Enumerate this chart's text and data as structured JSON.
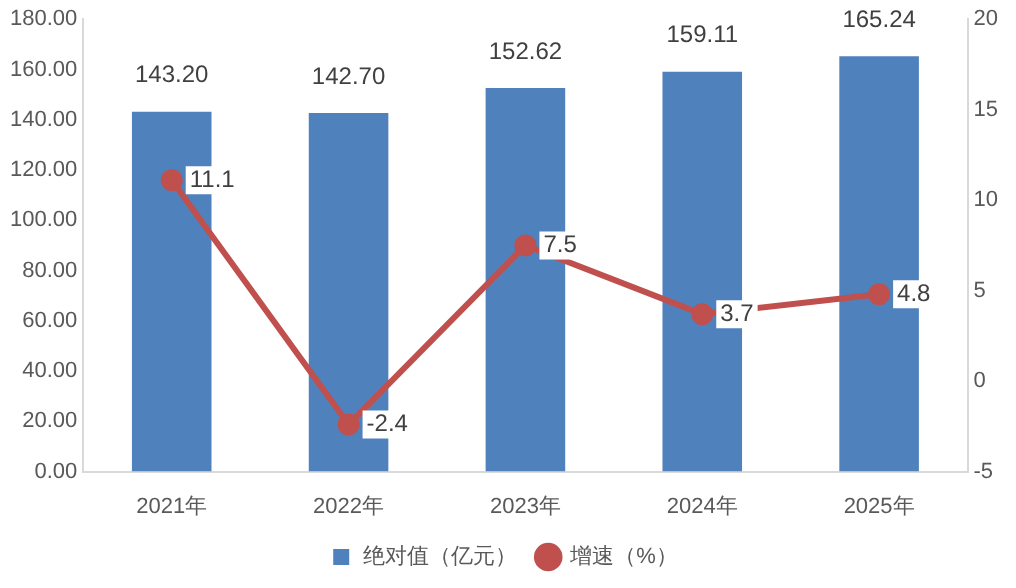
{
  "chart_data": {
    "type": "bar",
    "categories": [
      "2021年",
      "2022年",
      "2023年",
      "2024年",
      "2025年"
    ],
    "series": [
      {
        "name": "绝对值（亿元）",
        "color": "#4f81bd",
        "values": [
          143.2,
          142.7,
          152.62,
          159.11,
          165.24
        ],
        "value_labels": [
          "143.20",
          "142.70",
          "152.62",
          "159.11",
          "165.24"
        ]
      },
      {
        "name": "增速（%）",
        "type": "line",
        "axis": "y2",
        "color": "#c0504d",
        "marker": "circle",
        "values": [
          11.1,
          -2.4,
          7.5,
          3.7,
          4.8
        ],
        "value_labels": [
          "11.1",
          "-2.4",
          "7.5",
          "3.7",
          "4.8"
        ]
      }
    ],
    "ylim": [
      0,
      180
    ],
    "yticks": [
      {
        "value": 0,
        "label": "0.00"
      },
      {
        "value": 20,
        "label": "20.00"
      },
      {
        "value": 40,
        "label": "40.00"
      },
      {
        "value": 60,
        "label": "60.00"
      },
      {
        "value": 80,
        "label": "80.00"
      },
      {
        "value": 100,
        "label": "100.00"
      },
      {
        "value": 120,
        "label": "120.00"
      },
      {
        "value": 140,
        "label": "140.00"
      },
      {
        "value": 160,
        "label": "160.00"
      },
      {
        "value": 180,
        "label": "180.00"
      }
    ],
    "y2lim": [
      -5,
      20
    ],
    "y2ticks": [
      -5,
      0,
      5,
      10,
      15,
      20
    ],
    "grid": false,
    "legend": "bottom"
  }
}
